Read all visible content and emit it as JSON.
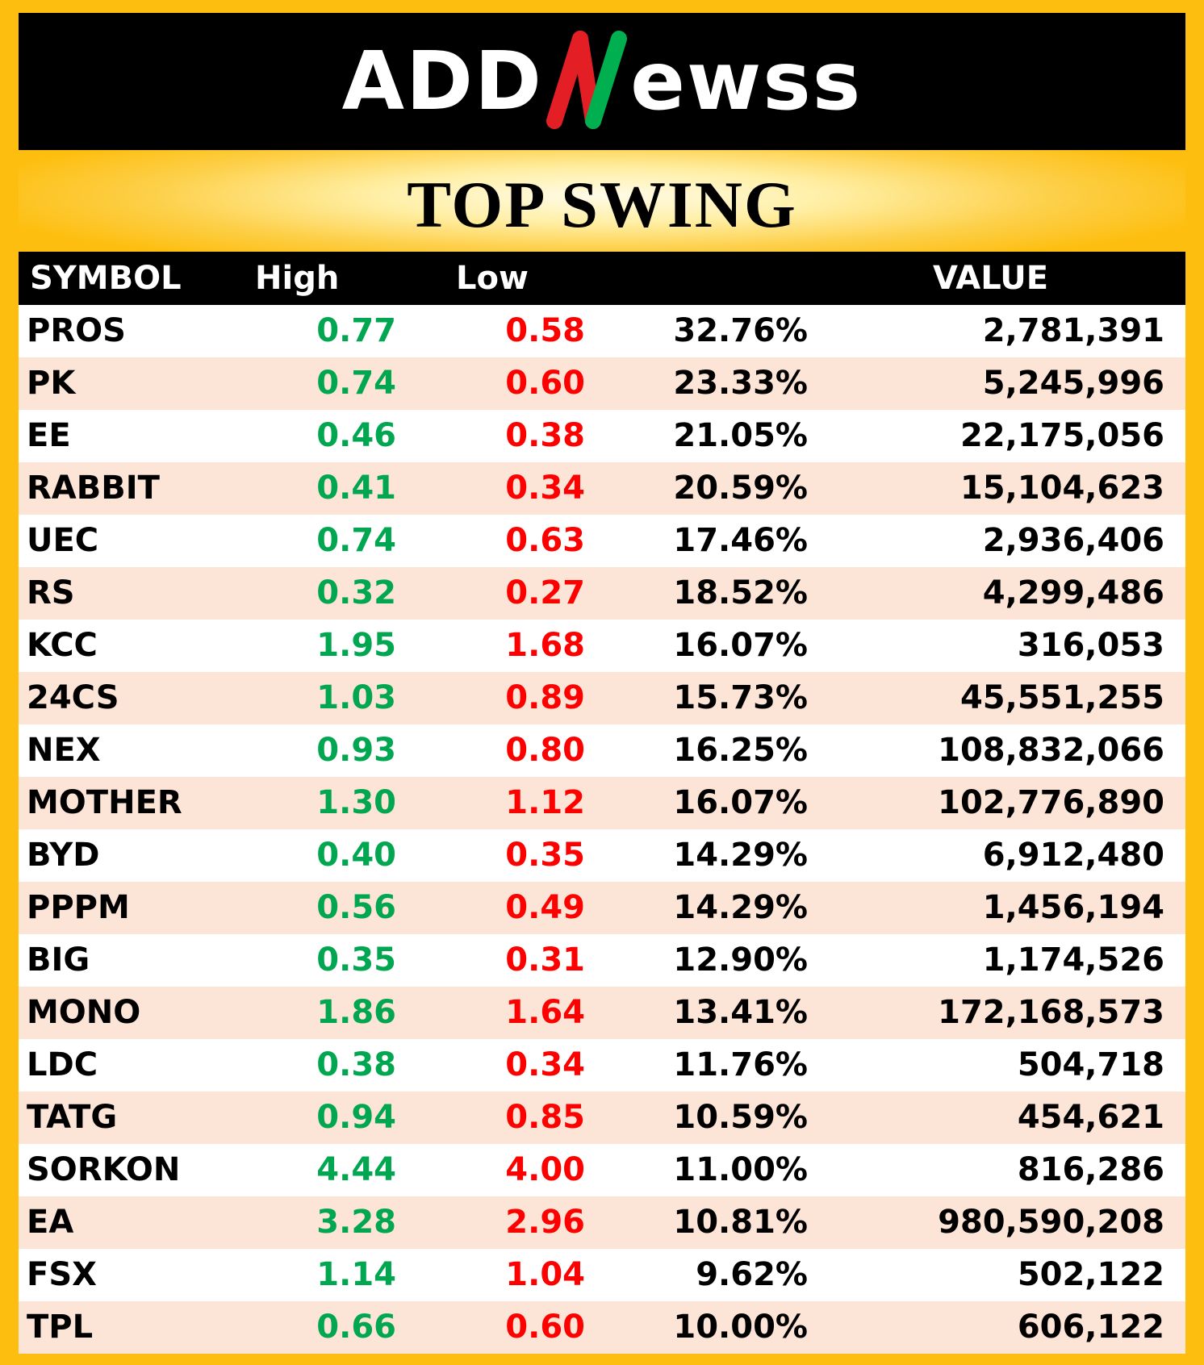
{
  "logo": {
    "left_text": "ADD",
    "right_text": "ewss",
    "accent_colors": {
      "red": "#E31E24",
      "green": "#00B050"
    }
  },
  "title": "TOP SWING",
  "table": {
    "headers": {
      "symbol": "SYMBOL",
      "high": "High",
      "low": "Low",
      "pct": "",
      "value": "VALUE"
    },
    "rows": [
      {
        "symbol": "PROS",
        "high": "0.77",
        "low": "0.58",
        "pct": "32.76%",
        "value": "2,781,391"
      },
      {
        "symbol": "PK",
        "high": "0.74",
        "low": "0.60",
        "pct": "23.33%",
        "value": "5,245,996"
      },
      {
        "symbol": "EE",
        "high": "0.46",
        "low": "0.38",
        "pct": "21.05%",
        "value": "22,175,056"
      },
      {
        "symbol": "RABBIT",
        "high": "0.41",
        "low": "0.34",
        "pct": "20.59%",
        "value": "15,104,623"
      },
      {
        "symbol": "UEC",
        "high": "0.74",
        "low": "0.63",
        "pct": "17.46%",
        "value": "2,936,406"
      },
      {
        "symbol": "RS",
        "high": "0.32",
        "low": "0.27",
        "pct": "18.52%",
        "value": "4,299,486"
      },
      {
        "symbol": "KCC",
        "high": "1.95",
        "low": "1.68",
        "pct": "16.07%",
        "value": "316,053"
      },
      {
        "symbol": "24CS",
        "high": "1.03",
        "low": "0.89",
        "pct": "15.73%",
        "value": "45,551,255"
      },
      {
        "symbol": "NEX",
        "high": "0.93",
        "low": "0.80",
        "pct": "16.25%",
        "value": "108,832,066"
      },
      {
        "symbol": "MOTHER",
        "high": "1.30",
        "low": "1.12",
        "pct": "16.07%",
        "value": "102,776,890"
      },
      {
        "symbol": "BYD",
        "high": "0.40",
        "low": "0.35",
        "pct": "14.29%",
        "value": "6,912,480"
      },
      {
        "symbol": "PPPM",
        "high": "0.56",
        "low": "0.49",
        "pct": "14.29%",
        "value": "1,456,194"
      },
      {
        "symbol": "BIG",
        "high": "0.35",
        "low": "0.31",
        "pct": "12.90%",
        "value": "1,174,526"
      },
      {
        "symbol": "MONO",
        "high": "1.86",
        "low": "1.64",
        "pct": "13.41%",
        "value": "172,168,573"
      },
      {
        "symbol": "LDC",
        "high": "0.38",
        "low": "0.34",
        "pct": "11.76%",
        "value": "504,718"
      },
      {
        "symbol": "TATG",
        "high": "0.94",
        "low": "0.85",
        "pct": "10.59%",
        "value": "454,621"
      },
      {
        "symbol": "SORKON",
        "high": "4.44",
        "low": "4.00",
        "pct": "11.00%",
        "value": "816,286"
      },
      {
        "symbol": "EA",
        "high": "3.28",
        "low": "2.96",
        "pct": "10.81%",
        "value": "980,590,208"
      },
      {
        "symbol": "FSX",
        "high": "1.14",
        "low": "1.04",
        "pct": "9.62%",
        "value": "502,122"
      },
      {
        "symbol": "TPL",
        "high": "0.66",
        "low": "0.60",
        "pct": "10.00%",
        "value": "606,122"
      }
    ]
  }
}
